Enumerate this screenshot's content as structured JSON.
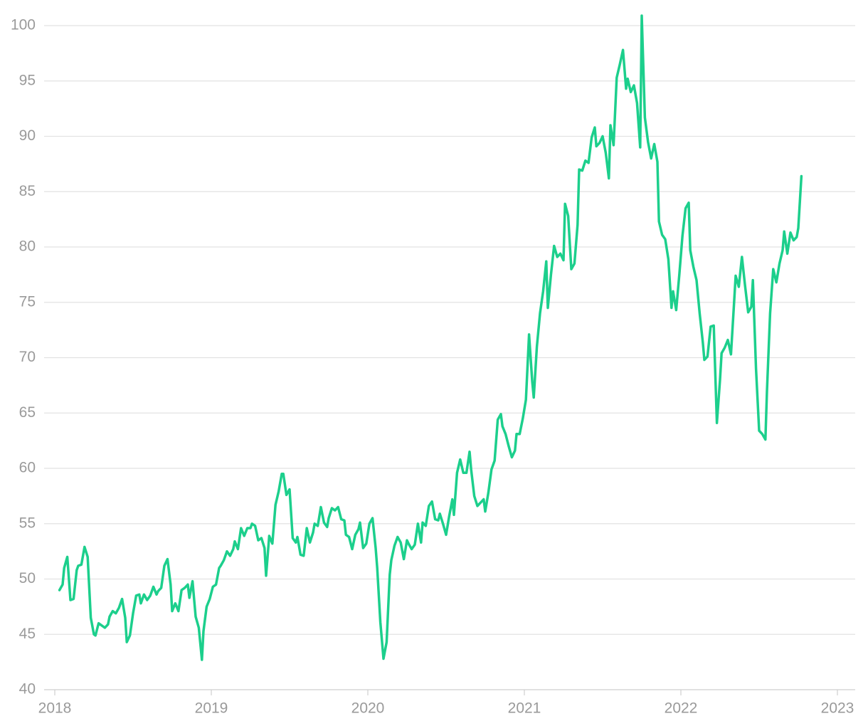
{
  "chart_data": {
    "type": "line",
    "color": "#1ccf8c",
    "grid": true,
    "xlim": [
      2018,
      2023
    ],
    "xticks": [
      2018,
      2019,
      2020,
      2021,
      2022,
      2023
    ],
    "ylim": [
      40,
      100
    ],
    "yticks": [
      40,
      45,
      50,
      55,
      60,
      65,
      70,
      75,
      80,
      85,
      90,
      95,
      100
    ],
    "x": [
      2018.03,
      2018.05,
      2018.06,
      2018.08,
      2018.1,
      2018.12,
      2018.14,
      2018.15,
      2018.17,
      2018.19,
      2018.21,
      2018.23,
      2018.25,
      2018.26,
      2018.28,
      2018.3,
      2018.32,
      2018.34,
      2018.35,
      2018.37,
      2018.39,
      2018.41,
      2018.43,
      2018.45,
      2018.46,
      2018.48,
      2018.5,
      2018.52,
      2018.54,
      2018.55,
      2018.57,
      2018.59,
      2018.61,
      2018.63,
      2018.65,
      2018.66,
      2018.68,
      2018.7,
      2018.72,
      2018.74,
      2018.75,
      2018.77,
      2018.79,
      2018.81,
      2018.83,
      2018.85,
      2018.86,
      2018.88,
      2018.9,
      2018.92,
      2018.94,
      2018.95,
      2018.97,
      2018.99,
      2019.01,
      2019.03,
      2019.05,
      2019.06,
      2019.08,
      2019.1,
      2019.12,
      2019.14,
      2019.15,
      2019.17,
      2019.19,
      2019.21,
      2019.23,
      2019.25,
      2019.26,
      2019.28,
      2019.3,
      2019.32,
      2019.34,
      2019.35,
      2019.37,
      2019.39,
      2019.41,
      2019.43,
      2019.45,
      2019.46,
      2019.48,
      2019.5,
      2019.52,
      2019.54,
      2019.55,
      2019.57,
      2019.59,
      2019.61,
      2019.63,
      2019.65,
      2019.66,
      2019.68,
      2019.7,
      2019.72,
      2019.74,
      2019.75,
      2019.77,
      2019.79,
      2019.81,
      2019.83,
      2019.85,
      2019.86,
      2019.88,
      2019.9,
      2019.92,
      2019.94,
      2019.95,
      2019.97,
      2019.99,
      2020.01,
      2020.03,
      2020.05,
      2020.06,
      2020.08,
      2020.1,
      2020.12,
      2020.14,
      2020.15,
      2020.17,
      2020.19,
      2020.21,
      2020.23,
      2020.25,
      2020.26,
      2020.28,
      2020.3,
      2020.32,
      2020.34,
      2020.35,
      2020.37,
      2020.39,
      2020.41,
      2020.43,
      2020.45,
      2020.46,
      2020.48,
      2020.5,
      2020.52,
      2020.54,
      2020.55,
      2020.57,
      2020.59,
      2020.61,
      2020.63,
      2020.65,
      2020.66,
      2020.68,
      2020.7,
      2020.72,
      2020.74,
      2020.75,
      2020.77,
      2020.79,
      2020.81,
      2020.83,
      2020.85,
      2020.86,
      2020.88,
      2020.9,
      2020.92,
      2020.94,
      2020.95,
      2020.97,
      2020.99,
      2021.01,
      2021.03,
      2021.05,
      2021.06,
      2021.08,
      2021.1,
      2021.12,
      2021.14,
      2021.15,
      2021.17,
      2021.19,
      2021.21,
      2021.23,
      2021.25,
      2021.26,
      2021.28,
      2021.3,
      2021.32,
      2021.34,
      2021.35,
      2021.37,
      2021.39,
      2021.41,
      2021.43,
      2021.45,
      2021.46,
      2021.48,
      2021.5,
      2021.52,
      2021.54,
      2021.55,
      2021.57,
      2021.59,
      2021.61,
      2021.63,
      2021.65,
      2021.66,
      2021.68,
      2021.7,
      2021.72,
      2021.74,
      2021.75,
      2021.77,
      2021.79,
      2021.81,
      2021.83,
      2021.85,
      2021.86,
      2021.88,
      2021.9,
      2021.92,
      2021.94,
      2021.95,
      2021.97,
      2021.99,
      2022.01,
      2022.03,
      2022.05,
      2022.06,
      2022.08,
      2022.1,
      2022.12,
      2022.14,
      2022.15,
      2022.17,
      2022.19,
      2022.21,
      2022.23,
      2022.25,
      2022.26,
      2022.28,
      2022.3,
      2022.32,
      2022.34,
      2022.35,
      2022.37,
      2022.39,
      2022.41,
      2022.43,
      2022.45,
      2022.46,
      2022.48,
      2022.5,
      2022.52,
      2022.54,
      2022.55,
      2022.57,
      2022.59,
      2022.61,
      2022.63,
      2022.65,
      2022.66,
      2022.68,
      2022.7,
      2022.72,
      2022.74,
      2022.75,
      2022.77
    ],
    "values": [
      49,
      49.5,
      51,
      52,
      48.1,
      48.2,
      50.8,
      51.2,
      51.3,
      52.9,
      52,
      46.5,
      45,
      44.9,
      46,
      45.8,
      45.6,
      45.9,
      46.6,
      47.1,
      46.9,
      47.4,
      48.2,
      46.5,
      44.3,
      44.9,
      46.9,
      48.5,
      48.6,
      47.8,
      48.6,
      48.1,
      48.5,
      49.3,
      48.6,
      48.9,
      49.2,
      51.2,
      51.8,
      49.5,
      47.1,
      47.8,
      47.1,
      49,
      49.2,
      49.5,
      48.3,
      49.8,
      46.6,
      45.6,
      42.7,
      45.3,
      47.5,
      48.2,
      49.3,
      49.5,
      51,
      51.2,
      51.7,
      52.5,
      52.1,
      52.7,
      53.4,
      52.7,
      54.6,
      53.9,
      54.6,
      54.6,
      55,
      54.8,
      53.5,
      53.7,
      52.8,
      50.3,
      53.9,
      53.2,
      56.7,
      57.9,
      59.5,
      59.5,
      57.6,
      58.1,
      53.7,
      53.3,
      53.8,
      52.2,
      52.1,
      54.6,
      53.3,
      54.2,
      55,
      54.8,
      56.5,
      55.1,
      54.7,
      55.5,
      56.4,
      56.2,
      56.5,
      55.4,
      55.3,
      54,
      53.8,
      52.7,
      54,
      54.5,
      55.1,
      52.8,
      53.2,
      55,
      55.5,
      52.8,
      51,
      46.1,
      42.8,
      44.3,
      50.4,
      51.7,
      53,
      53.8,
      53.3,
      51.8,
      53.5,
      53.2,
      52.7,
      53.1,
      55,
      53.3,
      55.1,
      54.8,
      56.6,
      57,
      55.4,
      55.3,
      55.9,
      55,
      54,
      55.7,
      57.2,
      55.8,
      59.6,
      60.8,
      59.6,
      59.6,
      61.5,
      59.9,
      57.5,
      56.6,
      56.9,
      57.2,
      56.1,
      57.8,
      59.9,
      60.7,
      64.4,
      64.9,
      63.8,
      63.1,
      62,
      61,
      61.6,
      63.1,
      63.1,
      64.5,
      66.2,
      72.1,
      67.9,
      66.4,
      71,
      74,
      76,
      78.7,
      74.5,
      77.5,
      80.1,
      79.1,
      79.4,
      78.8,
      83.9,
      82.8,
      78,
      78.5,
      82,
      87,
      86.9,
      87.8,
      87.6,
      89.9,
      90.8,
      89.1,
      89.4,
      90,
      88.5,
      86.2,
      91,
      89.2,
      95.3,
      96.5,
      97.8,
      94.3,
      95.2,
      94,
      94.6,
      93,
      89,
      100.9,
      91.7,
      89.5,
      88,
      89.3,
      87.7,
      82.3,
      81.1,
      80.7,
      78.9,
      74.5,
      76,
      74.3,
      77.5,
      81,
      83.5,
      84,
      79.7,
      78.2,
      77,
      74,
      71.4,
      69.8,
      70.1,
      72.8,
      72.9,
      64.1,
      68,
      70.4,
      70.9,
      71.6,
      70.3,
      75,
      77.4,
      76.4,
      79.1,
      76.5,
      74.1,
      74.6,
      77,
      69,
      63.4,
      63.1,
      62.6,
      67,
      74,
      78,
      76.8,
      78.5,
      79.7,
      81.4,
      79.4,
      81.3,
      80.6,
      80.9,
      81.7,
      86.4
    ]
  }
}
